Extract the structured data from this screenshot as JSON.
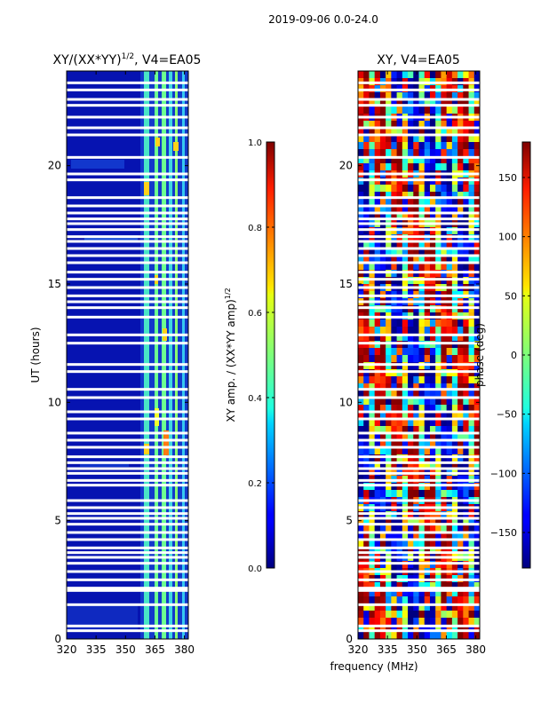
{
  "figure": {
    "suptitle": "2019-09-06 0.0-24.0",
    "shared_xlabel": "frequency (MHz)"
  },
  "chart_data": [
    {
      "type": "heatmap",
      "title": "XY/(XX*YY)",
      "title_exponent": "1/2",
      "title_suffix": ", V4=EA05",
      "xlabel": "",
      "ylabel": "UT (hours)",
      "xlim": [
        320,
        382
      ],
      "ylim": [
        0,
        24
      ],
      "xticks": [
        320,
        335,
        350,
        365,
        380
      ],
      "yticks": [
        0,
        5,
        10,
        15,
        20
      ],
      "colormap": "jet",
      "colorbar": {
        "label": "XY amp. / (XX*YY amp)",
        "label_exponent": "1/2",
        "range": [
          0.0,
          1.0
        ],
        "ticks": [
          "0.0",
          "0.2",
          "0.4",
          "0.6",
          "0.8",
          "1.0"
        ],
        "tick_values": [
          0.0,
          0.2,
          0.4,
          0.6,
          0.8,
          1.0
        ]
      }
    },
    {
      "type": "heatmap",
      "title": "XY, V4=EA05",
      "xlabel": "frequency (MHz)",
      "ylabel": "",
      "xlim": [
        320,
        382
      ],
      "ylim": [
        0,
        24
      ],
      "xticks": [
        320,
        335,
        350,
        365,
        380
      ],
      "yticks": [
        0,
        5,
        10,
        15,
        20
      ],
      "colormap": "jet",
      "colorbar": {
        "label": "phase (deg)",
        "range": [
          -180,
          180
        ],
        "ticks": [
          "−150",
          "−100",
          "−50",
          "0",
          "50",
          "100",
          "150"
        ],
        "tick_values": [
          -150,
          -100,
          -50,
          0,
          50,
          100,
          150
        ]
      }
    }
  ],
  "flagged_ut_hours": [
    0.35,
    0.55,
    1.45,
    2.05,
    2.15,
    2.5,
    2.85,
    3.2,
    3.45,
    3.65,
    3.85,
    4.2,
    4.5,
    4.85,
    5.1,
    5.3,
    5.55,
    5.85,
    6.5,
    6.7,
    7.0,
    7.2,
    7.45,
    7.7,
    8.1,
    8.4,
    8.7,
    9.3,
    9.6,
    10.2,
    10.55,
    11.3,
    11.6,
    12.5,
    12.85,
    13.6,
    14.0,
    14.25,
    14.5,
    14.85,
    15.2,
    15.5,
    15.9,
    16.2,
    16.5,
    16.8,
    17.0,
    17.3,
    17.55,
    17.75,
    18.0,
    18.3,
    18.65,
    19.4,
    19.65,
    20.35,
    21.3,
    21.6,
    22.05,
    22.55,
    22.8,
    23.2,
    23.5
  ]
}
